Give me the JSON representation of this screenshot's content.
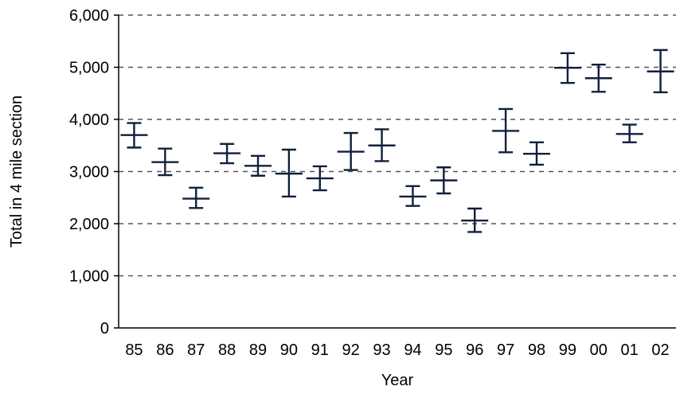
{
  "chart_data": {
    "type": "scatter",
    "title": "",
    "xlabel": "Year",
    "ylabel": "Total in 4 mile section",
    "ylim": [
      0,
      6000
    ],
    "yticks": [
      "0",
      "1,000",
      "2,000",
      "3,000",
      "4,000",
      "5,000",
      "6,000"
    ],
    "ytick_values": [
      0,
      1000,
      2000,
      3000,
      4000,
      5000,
      6000
    ],
    "grid": true,
    "legend": "none",
    "marker": "horizontal bar with vertical error bars",
    "colors": {
      "marker": "#0f1f3d",
      "grid": "#555555",
      "axis": "#000000"
    },
    "categories": [
      "85",
      "86",
      "87",
      "88",
      "89",
      "90",
      "91",
      "92",
      "93",
      "94",
      "95",
      "96",
      "97",
      "98",
      "99",
      "00",
      "01",
      "02"
    ],
    "values": [
      3700,
      3180,
      2480,
      3350,
      3110,
      2960,
      2870,
      3380,
      3500,
      2520,
      2830,
      2060,
      3780,
      3340,
      4990,
      4790,
      3720,
      4920
    ],
    "lower": [
      3460,
      2930,
      2300,
      3160,
      2920,
      2520,
      2640,
      3030,
      3200,
      2340,
      2580,
      1840,
      3370,
      3130,
      4700,
      4530,
      3560,
      4520
    ],
    "upper": [
      3930,
      3440,
      2690,
      3530,
      3300,
      3420,
      3100,
      3740,
      3810,
      2720,
      3080,
      2290,
      4200,
      3560,
      5270,
      5050,
      3900,
      5330
    ]
  }
}
